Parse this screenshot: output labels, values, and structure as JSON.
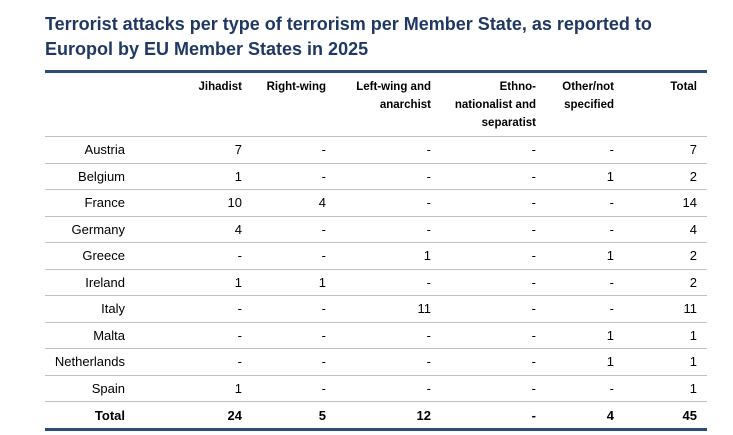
{
  "title": "Terrorist attacks per type of terrorism per Member State, as reported to Europol by EU Member States in 2025",
  "columns": [
    "",
    "Jihadist",
    "Right-wing",
    "Left-wing and anarchist",
    "Ethno-nationalist and separatist",
    "Other/not specified",
    "Total"
  ],
  "header_lines": [
    [
      ""
    ],
    [
      "Jihadist"
    ],
    [
      "Right-wing"
    ],
    [
      "Left-wing and",
      "anarchist"
    ],
    [
      "Ethno-",
      "nationalist and",
      "separatist"
    ],
    [
      "Other/not",
      "specified"
    ],
    [
      "Total"
    ]
  ],
  "rows": [
    {
      "country": "Austria",
      "values": [
        "7",
        "-",
        "-",
        "-",
        "-",
        "7"
      ]
    },
    {
      "country": "Belgium",
      "values": [
        "1",
        "-",
        "-",
        "-",
        "1",
        "2"
      ]
    },
    {
      "country": "France",
      "values": [
        "10",
        "4",
        "-",
        "-",
        "-",
        "14"
      ]
    },
    {
      "country": "Germany",
      "values": [
        "4",
        "-",
        "-",
        "-",
        "-",
        "4"
      ]
    },
    {
      "country": "Greece",
      "values": [
        "-",
        "-",
        "1",
        "-",
        "1",
        "2"
      ]
    },
    {
      "country": "Ireland",
      "values": [
        "1",
        "1",
        "-",
        "-",
        "-",
        "2"
      ]
    },
    {
      "country": "Italy",
      "values": [
        "-",
        "-",
        "11",
        "-",
        "-",
        "11"
      ]
    },
    {
      "country": "Malta",
      "values": [
        "-",
        "-",
        "-",
        "-",
        "1",
        "1"
      ]
    },
    {
      "country": "Netherlands",
      "values": [
        "-",
        "-",
        "-",
        "-",
        "1",
        "1"
      ]
    },
    {
      "country": "Spain",
      "values": [
        "1",
        "-",
        "-",
        "-",
        "-",
        "1"
      ]
    }
  ],
  "total": {
    "label": "Total",
    "values": [
      "24",
      "5",
      "12",
      "-",
      "4",
      "45"
    ]
  },
  "colors": {
    "title": "#1f3864",
    "rule": "#2e4c76",
    "grid": "#bfbfbf"
  }
}
